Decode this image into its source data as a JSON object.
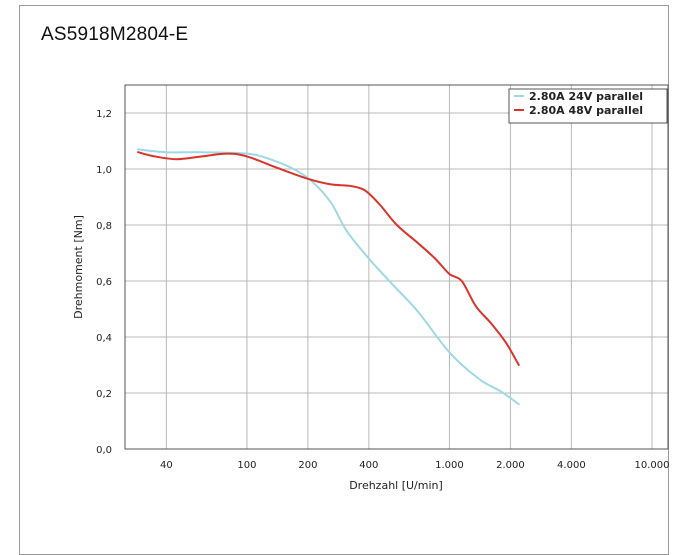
{
  "chart_data": {
    "type": "line",
    "title": "AS5918M2804-E",
    "xlabel": "Drehzahl [U/min]",
    "ylabel": "Drehmoment [Nm]",
    "xscale": "log",
    "xlim": [
      25,
      12000
    ],
    "ylim": [
      0,
      1.3
    ],
    "grid": true,
    "legend_position": "top-right",
    "x_ticks": [
      {
        "value": 40,
        "label": "40"
      },
      {
        "value": 100,
        "label": "100"
      },
      {
        "value": 200,
        "label": "200"
      },
      {
        "value": 400,
        "label": "400"
      },
      {
        "value": 1000,
        "label": "1.000"
      },
      {
        "value": 2000,
        "label": "2.000"
      },
      {
        "value": 4000,
        "label": "4.000"
      },
      {
        "value": 10000,
        "label": "10.000"
      }
    ],
    "y_ticks": [
      {
        "value": 0,
        "label": "0,0"
      },
      {
        "value": 0.2,
        "label": "0,2"
      },
      {
        "value": 0.4,
        "label": "0,4"
      },
      {
        "value": 0.6,
        "label": "0,6"
      },
      {
        "value": 0.8,
        "label": "0,8"
      },
      {
        "value": 1.0,
        "label": "1,0"
      },
      {
        "value": 1.2,
        "label": "1,2"
      }
    ],
    "series": [
      {
        "name": "2.80A 24V parallel",
        "color": "#9fd8e4",
        "points": [
          [
            29,
            1.07
          ],
          [
            40,
            1.06
          ],
          [
            60,
            1.06
          ],
          [
            100,
            1.055
          ],
          [
            130,
            1.035
          ],
          [
            170,
            1.0
          ],
          [
            210,
            0.955
          ],
          [
            260,
            0.88
          ],
          [
            310,
            0.78
          ],
          [
            400,
            0.68
          ],
          [
            520,
            0.59
          ],
          [
            700,
            0.49
          ],
          [
            1000,
            0.345
          ],
          [
            1400,
            0.25
          ],
          [
            1800,
            0.205
          ],
          [
            2200,
            0.16
          ]
        ]
      },
      {
        "name": "2.80A 48V parallel",
        "color": "#d9342b",
        "points": [
          [
            29,
            1.06
          ],
          [
            35,
            1.045
          ],
          [
            45,
            1.035
          ],
          [
            60,
            1.045
          ],
          [
            80,
            1.055
          ],
          [
            100,
            1.045
          ],
          [
            140,
            1.005
          ],
          [
            200,
            0.965
          ],
          [
            260,
            0.945
          ],
          [
            320,
            0.94
          ],
          [
            380,
            0.925
          ],
          [
            450,
            0.875
          ],
          [
            550,
            0.8
          ],
          [
            700,
            0.735
          ],
          [
            850,
            0.68
          ],
          [
            1000,
            0.625
          ],
          [
            1150,
            0.6
          ],
          [
            1350,
            0.51
          ],
          [
            1600,
            0.45
          ],
          [
            1900,
            0.38
          ],
          [
            2200,
            0.3
          ]
        ]
      }
    ]
  }
}
